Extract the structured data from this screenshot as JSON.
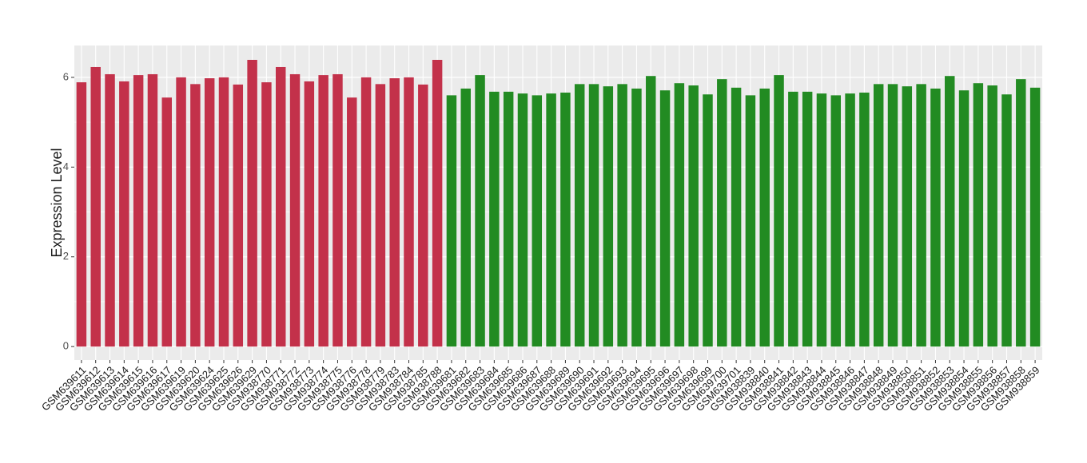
{
  "chart_data": {
    "type": "bar",
    "y_label": "Expression Level",
    "categories": [
      "GSM639611",
      "GSM639612",
      "GSM639613",
      "GSM639614",
      "GSM639615",
      "GSM639616",
      "GSM639617",
      "GSM639619",
      "GSM639620",
      "GSM639624",
      "GSM639625",
      "GSM639626",
      "GSM639629",
      "GSM938770",
      "GSM938771",
      "GSM938772",
      "GSM938773",
      "GSM938774",
      "GSM938775",
      "GSM938776",
      "GSM938778",
      "GSM938779",
      "GSM938783",
      "GSM938784",
      "GSM938785",
      "GSM938788",
      "GSM639681",
      "GSM639682",
      "GSM639683",
      "GSM639684",
      "GSM639685",
      "GSM639686",
      "GSM639687",
      "GSM639688",
      "GSM639689",
      "GSM639690",
      "GSM639691",
      "GSM639692",
      "GSM639693",
      "GSM639694",
      "GSM639695",
      "GSM639696",
      "GSM639697",
      "GSM639698",
      "GSM639699",
      "GSM639700",
      "GSM639701",
      "GSM938839",
      "GSM938840",
      "GSM938841",
      "GSM938842",
      "GSM938843",
      "GSM938844",
      "GSM938845",
      "GSM938846",
      "GSM938847",
      "GSM938848",
      "GSM938849",
      "GSM938850",
      "GSM938851",
      "GSM938852",
      "GSM938853",
      "GSM938854",
      "GSM938855",
      "GSM938856",
      "GSM938857",
      "GSM938858",
      "GSM938859"
    ],
    "values": [
      5.89,
      6.23,
      6.07,
      5.91,
      6.05,
      6.07,
      5.55,
      6.0,
      5.85,
      5.98,
      6.0,
      5.84,
      6.39,
      5.89,
      6.23,
      6.07,
      5.91,
      6.05,
      6.07,
      5.55,
      6.0,
      5.85,
      5.98,
      6.0,
      5.84,
      6.39,
      5.6,
      5.75,
      6.05,
      5.68,
      5.68,
      5.64,
      5.6,
      5.64,
      5.66,
      5.85,
      5.85,
      5.8,
      5.85,
      5.75,
      6.03,
      5.71,
      5.87,
      5.82,
      5.62,
      5.96,
      5.77,
      5.6,
      5.75,
      6.05,
      5.68,
      5.68,
      5.64,
      5.6,
      5.64,
      5.66,
      5.85,
      5.85,
      5.8,
      5.85,
      5.75,
      6.03,
      5.71,
      5.87,
      5.82,
      5.62,
      5.96,
      5.77
    ],
    "bar_colors": [
      "#c3314a",
      "#c3314a",
      "#c3314a",
      "#c3314a",
      "#c3314a",
      "#c3314a",
      "#c3314a",
      "#c3314a",
      "#c3314a",
      "#c3314a",
      "#c3314a",
      "#c3314a",
      "#c3314a",
      "#c3314a",
      "#c3314a",
      "#c3314a",
      "#c3314a",
      "#c3314a",
      "#c3314a",
      "#c3314a",
      "#c3314a",
      "#c3314a",
      "#c3314a",
      "#c3314a",
      "#c3314a",
      "#c3314a",
      "#228b22",
      "#228b22",
      "#228b22",
      "#228b22",
      "#228b22",
      "#228b22",
      "#228b22",
      "#228b22",
      "#228b22",
      "#228b22",
      "#228b22",
      "#228b22",
      "#228b22",
      "#228b22",
      "#228b22",
      "#228b22",
      "#228b22",
      "#228b22",
      "#228b22",
      "#228b22",
      "#228b22",
      "#228b22",
      "#228b22",
      "#228b22",
      "#228b22",
      "#228b22",
      "#228b22",
      "#228b22",
      "#228b22",
      "#228b22",
      "#228b22",
      "#228b22",
      "#228b22",
      "#228b22",
      "#228b22",
      "#228b22",
      "#228b22",
      "#228b22",
      "#228b22",
      "#228b22",
      "#228b22",
      "#228b22"
    ],
    "ylim": [
      -0.3,
      6.71
    ],
    "yticks": [
      0,
      2,
      4,
      6
    ],
    "grid": true
  }
}
